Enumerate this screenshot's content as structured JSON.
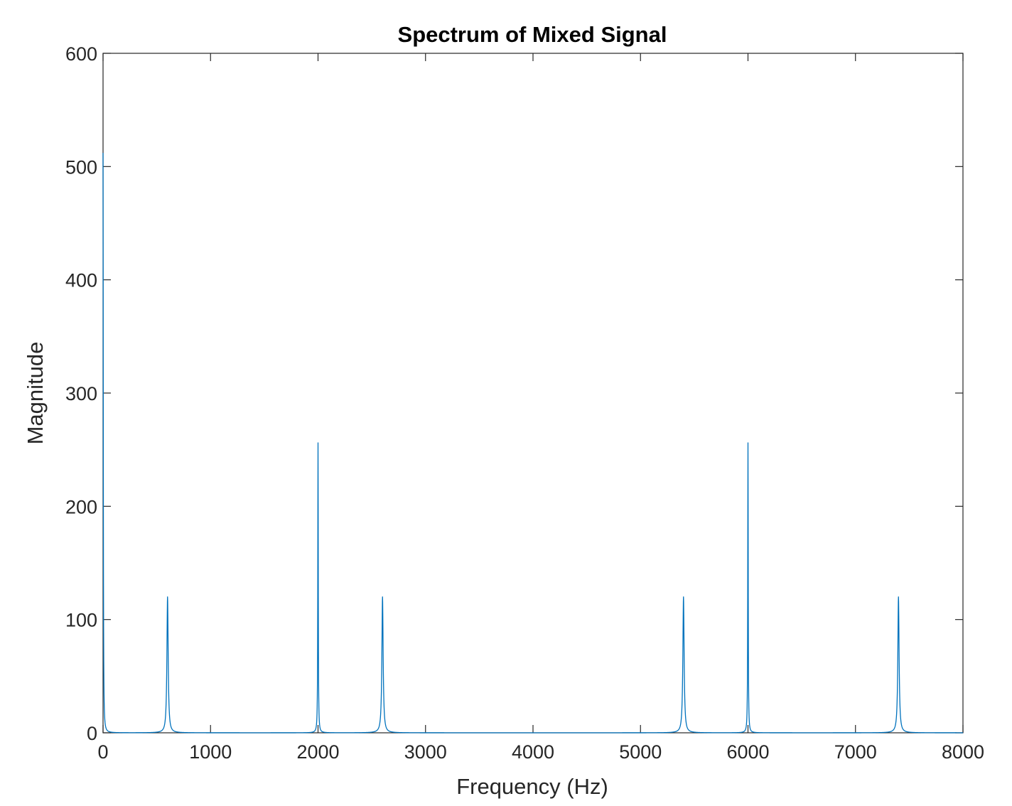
{
  "chart_data": {
    "type": "line",
    "title": "Spectrum of Mixed Signal",
    "xlabel": "Frequency (Hz)",
    "ylabel": "Magnitude",
    "xlim": [
      0,
      8000
    ],
    "ylim": [
      0,
      600
    ],
    "xticks": [
      0,
      1000,
      2000,
      3000,
      4000,
      5000,
      6000,
      7000,
      8000
    ],
    "yticks": [
      0,
      100,
      200,
      300,
      400,
      500,
      600
    ],
    "grid": false,
    "line_color": "#0072BD",
    "series": [
      {
        "peaks": [
          {
            "x": 0,
            "y": 512
          },
          {
            "x": 600,
            "y": 120
          },
          {
            "x": 2000,
            "y": 256
          },
          {
            "x": 2600,
            "y": 120
          },
          {
            "x": 5400,
            "y": 120
          },
          {
            "x": 6000,
            "y": 256
          },
          {
            "x": 7400,
            "y": 120
          }
        ]
      }
    ]
  }
}
